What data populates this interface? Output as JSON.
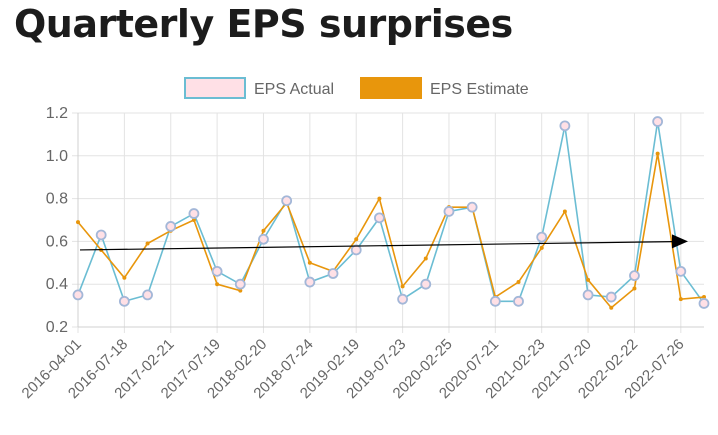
{
  "chart_data": {
    "type": "line",
    "title": "Quarterly EPS surprises",
    "xlabel": "",
    "ylabel": "",
    "ylim": [
      0.2,
      1.2
    ],
    "y_ticks": [
      "0.2",
      "0.4",
      "0.6",
      "0.8",
      "1.0",
      "1.2"
    ],
    "x_tick_labels": [
      "2016-04-01",
      "2016-07-18",
      "2017-02-21",
      "2017-07-19",
      "2018-02-20",
      "2018-07-24",
      "2019-02-19",
      "2019-07-23",
      "2020-02-25",
      "2020-07-21",
      "2021-02-23",
      "2021-07-20",
      "2022-02-22",
      "2022-07-26"
    ],
    "grid": true,
    "legend_position": "top-center",
    "colors": {
      "actual_line": "#6bbdd3",
      "actual_fill": "#ffe0e6",
      "actual_marker": "#a3b7d8",
      "estimate": "#e8960c",
      "trend": "#000000"
    },
    "series": [
      {
        "name": "EPS Actual",
        "values": [
          0.35,
          0.63,
          0.32,
          0.35,
          0.67,
          0.73,
          0.46,
          0.4,
          0.61,
          0.79,
          0.41,
          0.45,
          0.56,
          0.71,
          0.33,
          0.4,
          0.74,
          0.76,
          0.32,
          0.32,
          0.62,
          1.14,
          0.35,
          0.34,
          0.44,
          1.16,
          0.46,
          0.31
        ]
      },
      {
        "name": "EPS Estimate",
        "values": [
          0.69,
          0.56,
          0.43,
          0.59,
          0.65,
          0.7,
          0.4,
          0.37,
          0.65,
          0.78,
          0.5,
          0.46,
          0.61,
          0.8,
          0.39,
          0.52,
          0.76,
          0.76,
          0.34,
          0.41,
          0.57,
          0.74,
          0.42,
          0.29,
          0.38,
          1.01,
          0.33,
          0.34
        ]
      }
    ],
    "trend_line": {
      "start": 0.56,
      "end": 0.6
    }
  }
}
